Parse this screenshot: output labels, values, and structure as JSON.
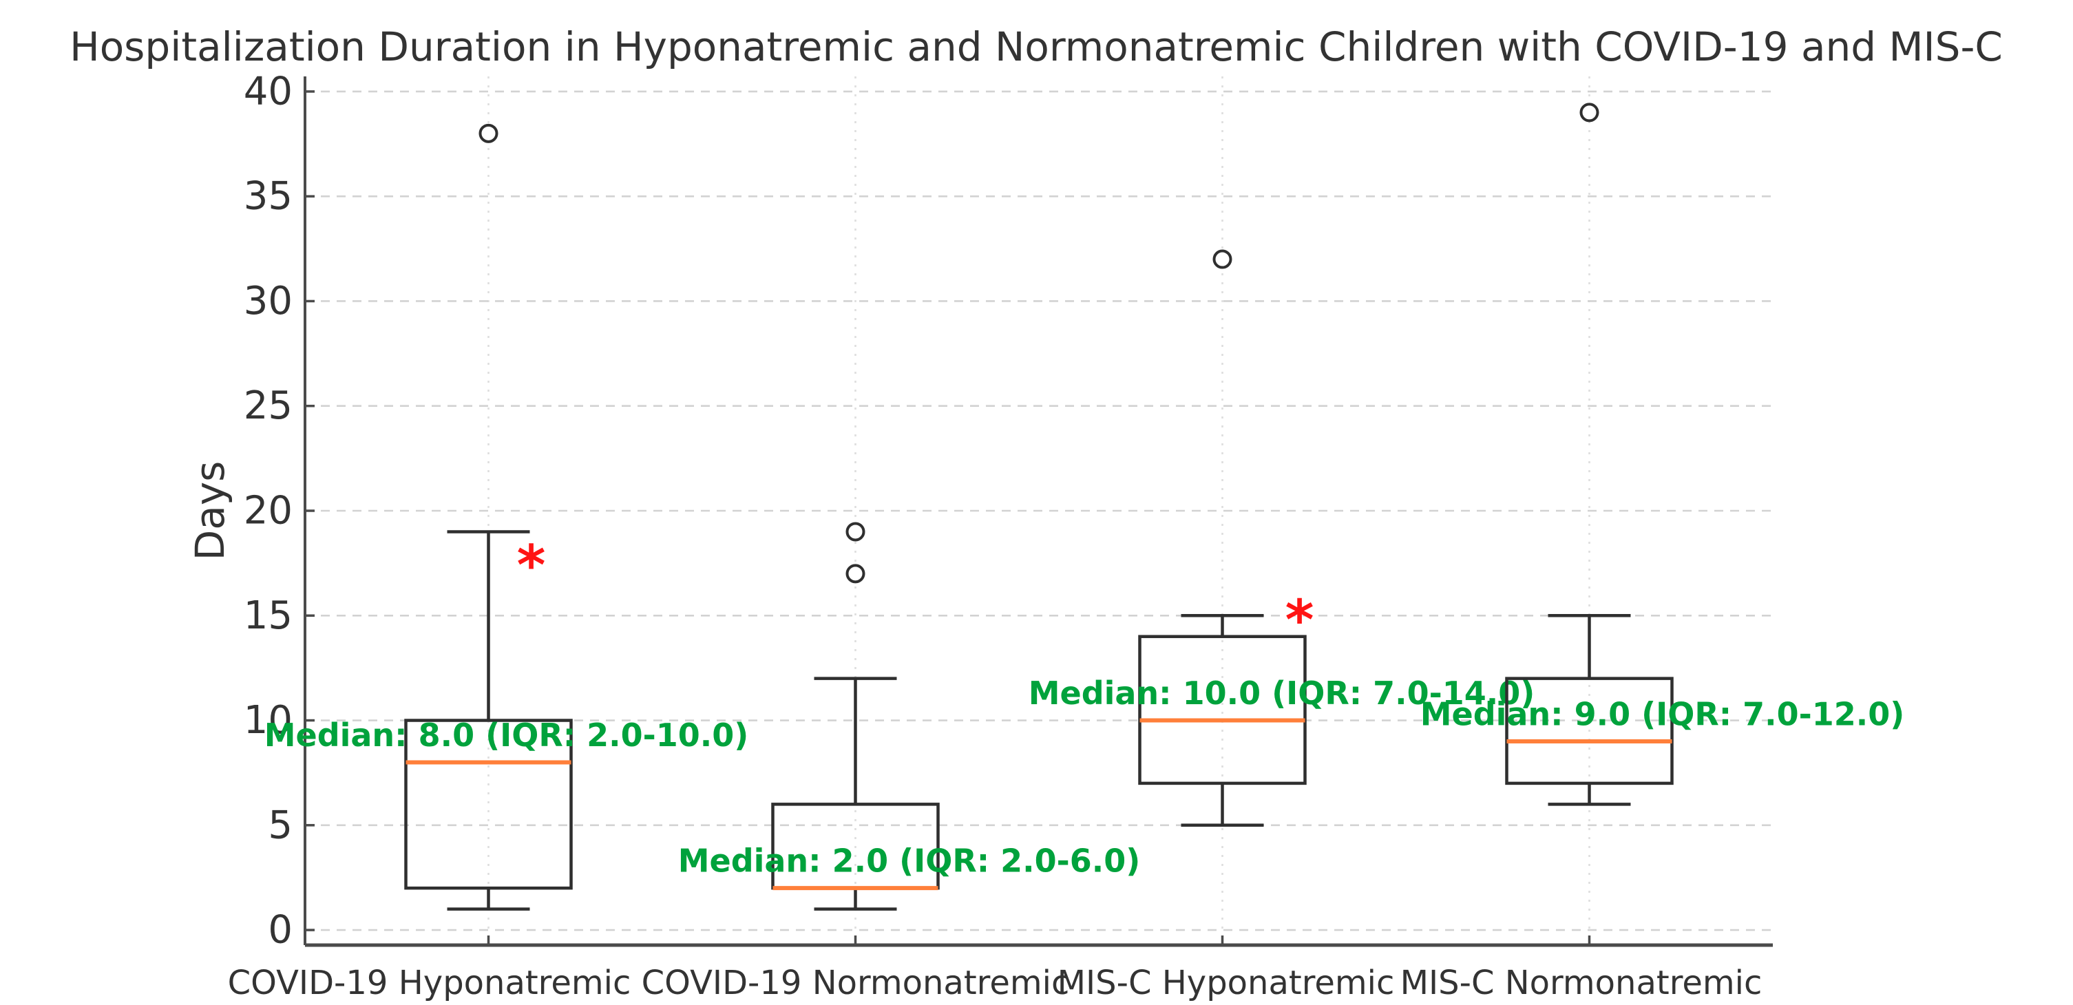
{
  "chart_data": {
    "type": "box",
    "title": "Hospitalization Duration in Hyponatremic and Normonatremic Children with COVID-19 and MIS-C",
    "ylabel": "Days",
    "xlabel": "",
    "ylim": [
      -0.72,
      40.72
    ],
    "yticks": [
      0,
      5,
      10,
      15,
      20,
      25,
      30,
      35,
      40
    ],
    "grid": true,
    "legend": "none",
    "significance_symbol": "*",
    "colors": {
      "box": "#2f2f2f",
      "median": "#ff7f3a",
      "annotation": "#00a23c",
      "significance": "#ff1414",
      "grid_horizontal": "#d2d2d2",
      "grid_vertical": "#dedede",
      "spine": "#4b4b4b",
      "text": "#333333",
      "outlier": "#2f2f2f",
      "background": "#ffffff"
    },
    "categories": [
      "COVID-19 Hyponatremic",
      "COVID-19 Normonatremic",
      "MIS-C Hyponatremic",
      "MIS-C Normonatremic"
    ],
    "groups": [
      {
        "label": "COVID-19 Hyponatremic",
        "median": 8.0,
        "q1": 2.0,
        "q3": 10.0,
        "whisker_low": 1.0,
        "whisker_high": 19.0,
        "outliers": [
          38
        ],
        "annotation": {
          "text": "Median: 8.0 (IQR: 2.0-10.0)",
          "dx": 26,
          "y": 9.3
        },
        "significance": {
          "symbol": "*",
          "dx": 62,
          "y": 17.6
        }
      },
      {
        "label": "COVID-19 Normonatremic",
        "median": 2.0,
        "q1": 2.0,
        "q3": 6.0,
        "whisker_low": 1.0,
        "whisker_high": 12.0,
        "outliers": [
          17,
          19
        ],
        "annotation": {
          "text": "Median: 2.0 (IQR: 2.0-6.0)",
          "dx": 78,
          "y": 3.3
        },
        "significance": null
      },
      {
        "label": "MIS-C Hyponatremic",
        "median": 10.0,
        "q1": 7.0,
        "q3": 14.0,
        "whisker_low": 5.0,
        "whisker_high": 15.0,
        "outliers": [
          32
        ],
        "annotation": {
          "text": "Median: 10.0 (IQR: 7.0-14.0)",
          "dx": 86,
          "y": 11.3
        },
        "significance": {
          "symbol": "*",
          "dx": 112,
          "y": 15.0
        }
      },
      {
        "label": "MIS-C Normonatremic",
        "median": 9.0,
        "q1": 7.0,
        "q3": 12.0,
        "whisker_low": 6.0,
        "whisker_high": 15.0,
        "outliers": [
          39
        ],
        "annotation": {
          "text": "Median: 9.0 (IQR: 7.0-12.0)",
          "dx": 106,
          "y": 10.3
        },
        "significance": null
      }
    ]
  }
}
